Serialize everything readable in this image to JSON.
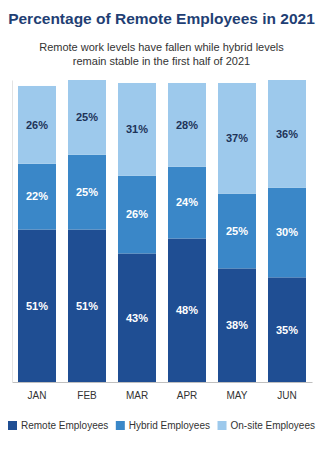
{
  "chart_data": {
    "type": "bar",
    "title": "Percentage of Remote Employees in 2021",
    "subtitle": "Remote work levels have fallen while hybrid levels remain stable in the first half of 2021",
    "categories": [
      "JAN",
      "FEB",
      "MAR",
      "APR",
      "MAY",
      "JUN"
    ],
    "series": [
      {
        "name": "Remote Employees",
        "color": "#1f4e93",
        "values": [
          51,
          51,
          43,
          48,
          38,
          35
        ],
        "value_labels": [
          "51%",
          "51%",
          "43%",
          "48%",
          "38%",
          "35%"
        ]
      },
      {
        "name": "Hybrid Employees",
        "color": "#3a87c8",
        "values": [
          22,
          25,
          26,
          24,
          25,
          30
        ],
        "value_labels": [
          "22%",
          "25%",
          "26%",
          "24%",
          "25%",
          "30%"
        ]
      },
      {
        "name": "On-site Employees",
        "color": "#9dc9ec",
        "values": [
          26,
          25,
          31,
          28,
          37,
          36
        ],
        "value_labels": [
          "26%",
          "25%",
          "31%",
          "28%",
          "37%",
          "36%"
        ]
      }
    ],
    "ylim": [
      0,
      101
    ],
    "yticks": [],
    "stacked": true,
    "data_labels": true,
    "tick_labels": "x",
    "grid": false,
    "legend": "bottom"
  }
}
